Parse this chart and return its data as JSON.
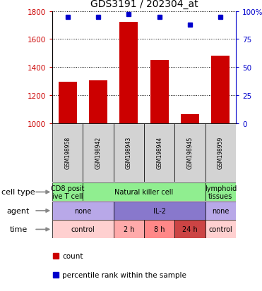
{
  "title": "GDS3191 / 202304_at",
  "samples": [
    "GSM198958",
    "GSM198942",
    "GSM198943",
    "GSM198944",
    "GSM198945",
    "GSM198959"
  ],
  "counts": [
    1295,
    1305,
    1720,
    1450,
    1065,
    1480
  ],
  "percentile_ranks": [
    95,
    95,
    97,
    95,
    88,
    95
  ],
  "ylim_left": [
    1000,
    1800
  ],
  "ylim_right": [
    0,
    100
  ],
  "yticks_left": [
    1000,
    1200,
    1400,
    1600,
    1800
  ],
  "yticks_right": [
    0,
    25,
    50,
    75,
    100
  ],
  "bar_color": "#cc0000",
  "dot_color": "#0000cc",
  "left_axis_color": "#cc0000",
  "right_axis_color": "#0000cc",
  "sample_bg": "#d3d3d3",
  "cell_type_row": {
    "label": "cell type",
    "cells": [
      {
        "text": "CD8 posit\nive T cell",
        "color": "#90ee90",
        "span": 1
      },
      {
        "text": "Natural killer cell",
        "color": "#90ee90",
        "span": 4
      },
      {
        "text": "lymphoid\ntissues",
        "color": "#90ee90",
        "span": 1
      }
    ]
  },
  "agent_row": {
    "label": "agent",
    "cells": [
      {
        "text": "none",
        "color": "#b8a8e8",
        "span": 2
      },
      {
        "text": "IL-2",
        "color": "#8878cc",
        "span": 3
      },
      {
        "text": "none",
        "color": "#b8a8e8",
        "span": 1
      }
    ]
  },
  "time_row": {
    "label": "time",
    "cells": [
      {
        "text": "control",
        "color": "#ffd0d0",
        "span": 2
      },
      {
        "text": "2 h",
        "color": "#ffaaaa",
        "span": 1
      },
      {
        "text": "8 h",
        "color": "#ff8888",
        "span": 1
      },
      {
        "text": "24 h",
        "color": "#cc4444",
        "span": 1
      },
      {
        "text": "control",
        "color": "#ffd0d0",
        "span": 1
      }
    ]
  },
  "legend_count_color": "#cc0000",
  "legend_prank_color": "#0000cc",
  "background_color": "#ffffff"
}
